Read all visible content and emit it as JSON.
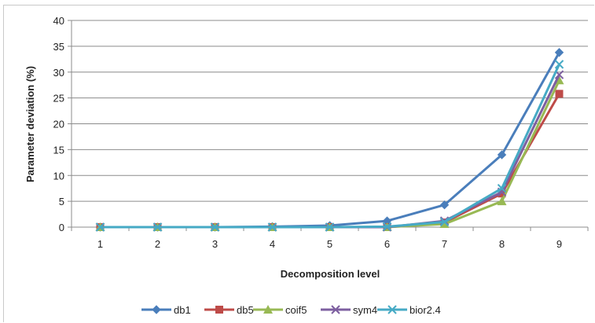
{
  "chart_data": {
    "type": "line",
    "title": "",
    "xlabel": "Decomposition level",
    "ylabel": "Parameter deviation (%)",
    "categories": [
      "1",
      "2",
      "3",
      "4",
      "5",
      "6",
      "7",
      "8",
      "9"
    ],
    "ylim": [
      0,
      40
    ],
    "yticks": [
      "0",
      "5",
      "10",
      "15",
      "20",
      "25",
      "30",
      "35",
      "40"
    ],
    "grid": true,
    "legend_position": "bottom",
    "series": [
      {
        "name": "db1",
        "color": "#4a7ebb",
        "marker": "diamond",
        "values": [
          0,
          0,
          0,
          0.1,
          0.3,
          1.2,
          4.3,
          14.0,
          33.8
        ]
      },
      {
        "name": "db5",
        "color": "#be4b48",
        "marker": "square",
        "values": [
          0,
          0,
          0,
          0,
          0,
          0,
          0.9,
          6.5,
          25.8
        ]
      },
      {
        "name": "coif5",
        "color": "#98b954",
        "marker": "triangle",
        "values": [
          0,
          0,
          0,
          0,
          0,
          0,
          0.6,
          5.0,
          28.4
        ]
      },
      {
        "name": "sym4",
        "color": "#7d5fa0",
        "marker": "x",
        "values": [
          0,
          0,
          0,
          0,
          0,
          0,
          1.2,
          6.8,
          29.5
        ]
      },
      {
        "name": "bior2.4",
        "color": "#46aac5",
        "marker": "x",
        "values": [
          0,
          0,
          0,
          0,
          0,
          0.1,
          1.0,
          7.5,
          31.5
        ]
      }
    ]
  }
}
